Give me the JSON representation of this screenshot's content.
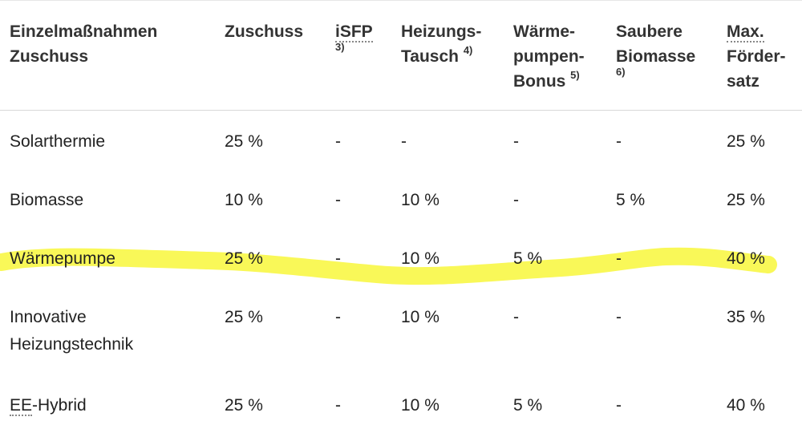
{
  "table": {
    "headers": [
      {
        "line1": "Einzelmaßnahmen",
        "line2": "Zuschuss",
        "sup": "",
        "sub": ""
      },
      {
        "line1": "Zuschuss",
        "line2": "",
        "sup": "",
        "sub": ""
      },
      {
        "line1": "iSFP",
        "line2": "",
        "sup": "",
        "sub": "3)"
      },
      {
        "line1": "Heizungs-",
        "line2": "Tausch",
        "sup": "4)",
        "sub": ""
      },
      {
        "line1": "Wärme-",
        "line2": "pumpen-",
        "line3": "Bonus",
        "sup": "5)",
        "sub": ""
      },
      {
        "line1": "Saubere",
        "line2": "Biomasse",
        "sup": "",
        "sub": "6)"
      },
      {
        "line1": "Max.",
        "line2": "Förder-",
        "line3": "satz",
        "sup": "",
        "sub": ""
      }
    ],
    "rows": [
      {
        "name": "Solarthermie",
        "cells": [
          "25 %",
          "-",
          "-",
          "-",
          "-",
          "25 %"
        ]
      },
      {
        "name": "Biomasse",
        "cells": [
          "10 %",
          "-",
          "10 %",
          "-",
          "5 %",
          "25 %"
        ]
      },
      {
        "name": "Wärmepumpe",
        "cells": [
          "25 %",
          "-",
          "10 %",
          "5 %",
          "-",
          "40 %"
        ],
        "highlighted": true
      },
      {
        "name_line1": "Innovative",
        "name_line2": "Heizungstechnik",
        "cells": [
          "25 %",
          "-",
          "10 %",
          "-",
          "-",
          "35 %"
        ]
      },
      {
        "name_abbr": "EE",
        "name_rest": "-Hybrid",
        "cells": [
          "25 %",
          "-",
          "10 %",
          "5 %",
          "-",
          "40 %"
        ]
      }
    ]
  },
  "highlight_color": "#f8f74a"
}
